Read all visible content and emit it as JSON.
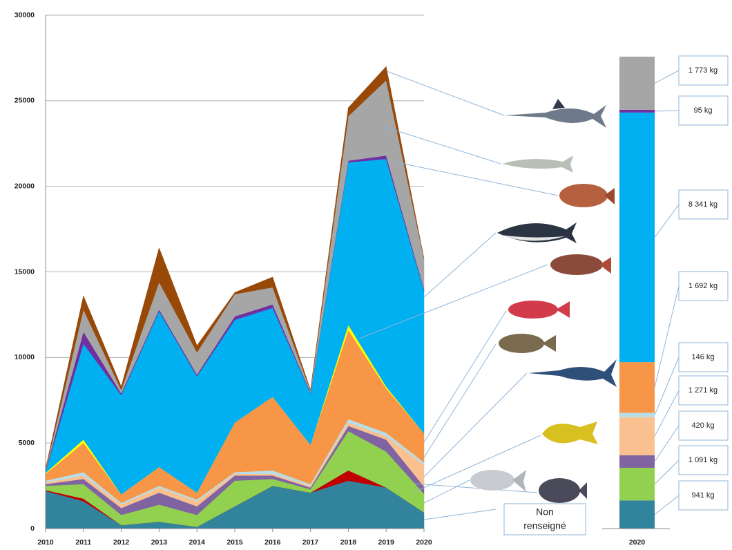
{
  "chart_data": [
    {
      "type": "area",
      "stacked": true,
      "categories": [
        "2010",
        "2011",
        "2012",
        "2013",
        "2014",
        "2015",
        "2016",
        "2017",
        "2018",
        "2019",
        "2020"
      ],
      "ylim": [
        0,
        30000
      ],
      "yticks": [
        0,
        5000,
        10000,
        15000,
        20000,
        25000,
        30000
      ],
      "grid": true,
      "annotation": "Non renseigné",
      "series": [
        {
          "color": "#31849b",
          "values": [
            2200,
            1600,
            200,
            400,
            100,
            1300,
            2500,
            2100,
            2800,
            2400,
            941
          ]
        },
        {
          "color": "#c00000",
          "values": [
            50,
            150,
            0,
            0,
            0,
            0,
            0,
            0,
            600,
            0,
            0
          ]
        },
        {
          "color": "#92d050",
          "values": [
            250,
            850,
            600,
            1000,
            700,
            1500,
            400,
            200,
            2300,
            2100,
            1091
          ]
        },
        {
          "color": "#8064a2",
          "values": [
            100,
            300,
            400,
            700,
            500,
            300,
            200,
            100,
            300,
            700,
            420
          ]
        },
        {
          "color": "#fac090",
          "values": [
            100,
            200,
            200,
            300,
            300,
            100,
            100,
            100,
            200,
            200,
            1271
          ]
        },
        {
          "color": "#b7dee8",
          "values": [
            100,
            200,
            100,
            100,
            100,
            100,
            200,
            100,
            200,
            200,
            146
          ]
        },
        {
          "color": "#f79646",
          "values": [
            400,
            1700,
            500,
            1100,
            400,
            2900,
            4300,
            2300,
            5200,
            2600,
            1692
          ]
        },
        {
          "color": "#ffff00",
          "values": [
            50,
            200,
            0,
            0,
            0,
            0,
            0,
            0,
            300,
            100,
            0
          ]
        },
        {
          "color": "#00b0f0",
          "values": [
            100,
            5600,
            5800,
            9100,
            6800,
            6000,
            5200,
            3000,
            9500,
            13300,
            8341
          ]
        },
        {
          "color": "#7030a0",
          "values": [
            50,
            700,
            100,
            100,
            100,
            200,
            200,
            50,
            100,
            200,
            95
          ]
        },
        {
          "color": "#a6a6a6",
          "values": [
            50,
            1300,
            200,
            1600,
            1300,
            1300,
            1000,
            100,
            2600,
            4400,
            1773
          ]
        },
        {
          "color": "#984807",
          "values": [
            50,
            800,
            200,
            2000,
            400,
            100,
            600,
            50,
            500,
            800,
            0
          ]
        }
      ]
    },
    {
      "type": "stacked-bar",
      "categories": [
        "2020"
      ],
      "series": [
        {
          "color": "#31849b",
          "values": [
            941
          ],
          "value_labels": [
            "941 kg"
          ]
        },
        {
          "color": "#92d050",
          "values": [
            1091
          ],
          "value_labels": [
            "1 091 kg"
          ]
        },
        {
          "color": "#8064a2",
          "values": [
            420
          ],
          "value_labels": [
            "420 kg"
          ]
        },
        {
          "color": "#fac090",
          "values": [
            1271
          ],
          "value_labels": [
            "1 271 kg"
          ]
        },
        {
          "color": "#b7dee8",
          "values": [
            146
          ],
          "value_labels": [
            "146 kg"
          ]
        },
        {
          "color": "#f79646",
          "values": [
            1692
          ],
          "value_labels": [
            "1 692 kg"
          ]
        },
        {
          "color": "#00b0f0",
          "values": [
            8341
          ],
          "value_labels": [
            "8 341 kg"
          ]
        },
        {
          "color": "#7030a0",
          "values": [
            95
          ],
          "value_labels": [
            "95 kg"
          ]
        },
        {
          "color": "#a6a6a6",
          "values": [
            1773
          ],
          "value_labels": [
            "1 773 kg"
          ]
        }
      ]
    }
  ]
}
